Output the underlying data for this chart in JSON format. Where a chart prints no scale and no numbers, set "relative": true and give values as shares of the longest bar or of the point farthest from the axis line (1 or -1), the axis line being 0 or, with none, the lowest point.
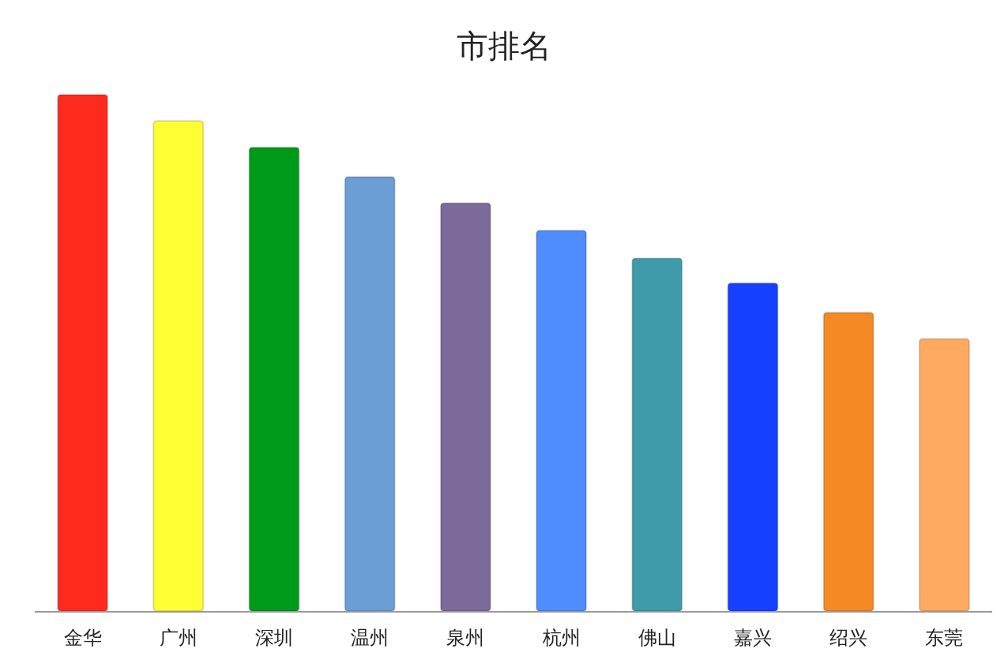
{
  "chart_data": {
    "type": "bar",
    "title": "市排名",
    "relative": true,
    "categories": [
      "金华",
      "广州",
      "深圳",
      "温州",
      "泉州",
      "杭州",
      "佛山",
      "嘉兴",
      "绍兴",
      "东莞"
    ],
    "values": [
      1,
      0.949,
      0.898,
      0.841,
      0.79,
      0.737,
      0.683,
      0.635,
      0.578,
      0.527
    ],
    "colors": [
      "#ff2a1e",
      "#ffff33",
      "#009a1a",
      "#6a9ed4",
      "#7b6a9a",
      "#4f8cff",
      "#3f9aaa",
      "#1540ff",
      "#f58a25",
      "#ffaa60"
    ],
    "grid": false
  }
}
